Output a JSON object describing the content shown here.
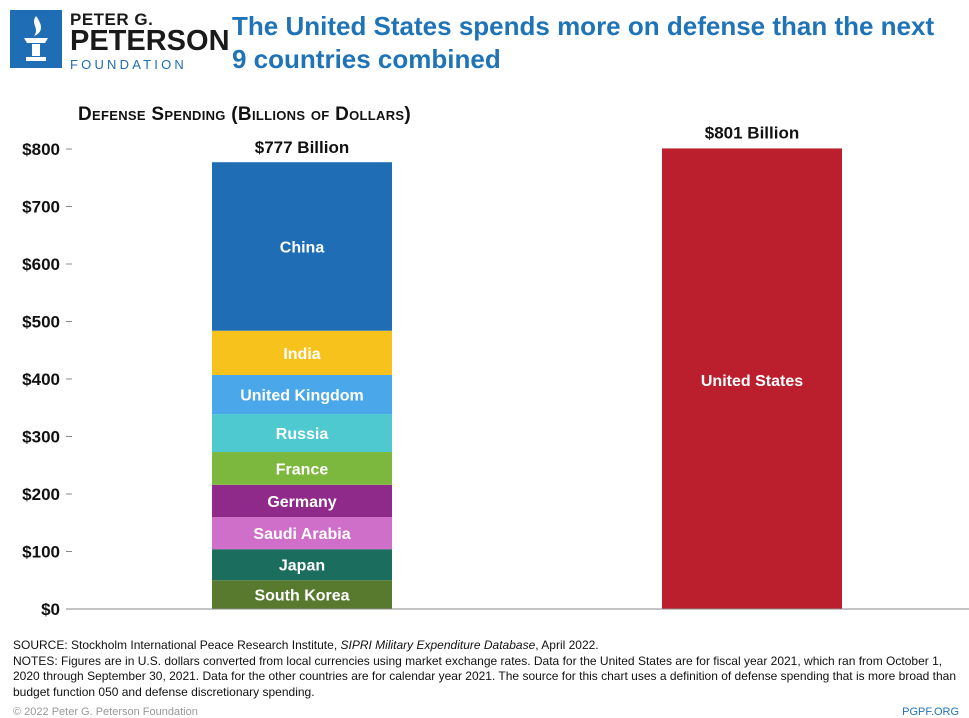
{
  "logo": {
    "line1": "PETER G.",
    "line2": "PETERSON",
    "line3": "FOUNDATION"
  },
  "headline": "The United States spends more on defense than the next 9 countries combined",
  "chart_data": {
    "type": "bar",
    "title": "Defense Spending (Billions of Dollars)",
    "ylim": [
      0,
      800
    ],
    "yticks": [
      0,
      100,
      200,
      300,
      400,
      500,
      600,
      700,
      800
    ],
    "ytick_labels": [
      "$0",
      "$100",
      "$200",
      "$300",
      "$400",
      "$500",
      "$600",
      "$700",
      "$800"
    ],
    "grid": false,
    "categories": [
      "Next 9 countries combined",
      "United States"
    ],
    "stacked_bar": {
      "total_label": "$777 Billion",
      "total": 777,
      "segments": [
        {
          "name": "South Korea",
          "value": 50,
          "color": "#587a2f"
        },
        {
          "name": "Japan",
          "value": 54,
          "color": "#1b6e5e"
        },
        {
          "name": "Saudi Arabia",
          "value": 56,
          "color": "#cf6fca"
        },
        {
          "name": "Germany",
          "value": 56,
          "color": "#8f2a8a"
        },
        {
          "name": "France",
          "value": 57,
          "color": "#7cb83d"
        },
        {
          "name": "Russia",
          "value": 66,
          "color": "#4fc9d0"
        },
        {
          "name": "United Kingdom",
          "value": 68,
          "color": "#4aa7ea"
        },
        {
          "name": "India",
          "value": 77,
          "color": "#f7c21b"
        },
        {
          "name": "China",
          "value": 293,
          "color": "#1f6db5"
        }
      ]
    },
    "single_bar": {
      "name": "United States",
      "value": 801,
      "total_label": "$801 Billion",
      "color": "#bb1f2e"
    }
  },
  "footer": {
    "source_prefix": "SOURCE: Stockholm International Peace Research Institute, ",
    "source_italic": "SIPRI Military Expenditure Database",
    "source_suffix": ", April 2022.",
    "notes": "NOTES: Figures are in U.S. dollars converted from local currencies using market exchange rates. Data for the United States are for fiscal year 2021, which ran from October 1, 2020 through September 30, 2021. Data for the other countries are for calendar year 2021. The source for this chart uses a definition of defense spending that is more broad than budget function 050 and defense discretionary spending.",
    "copyright": "© 2022 Peter G. Peterson Foundation",
    "cut_right": "PGPF.ORG"
  }
}
